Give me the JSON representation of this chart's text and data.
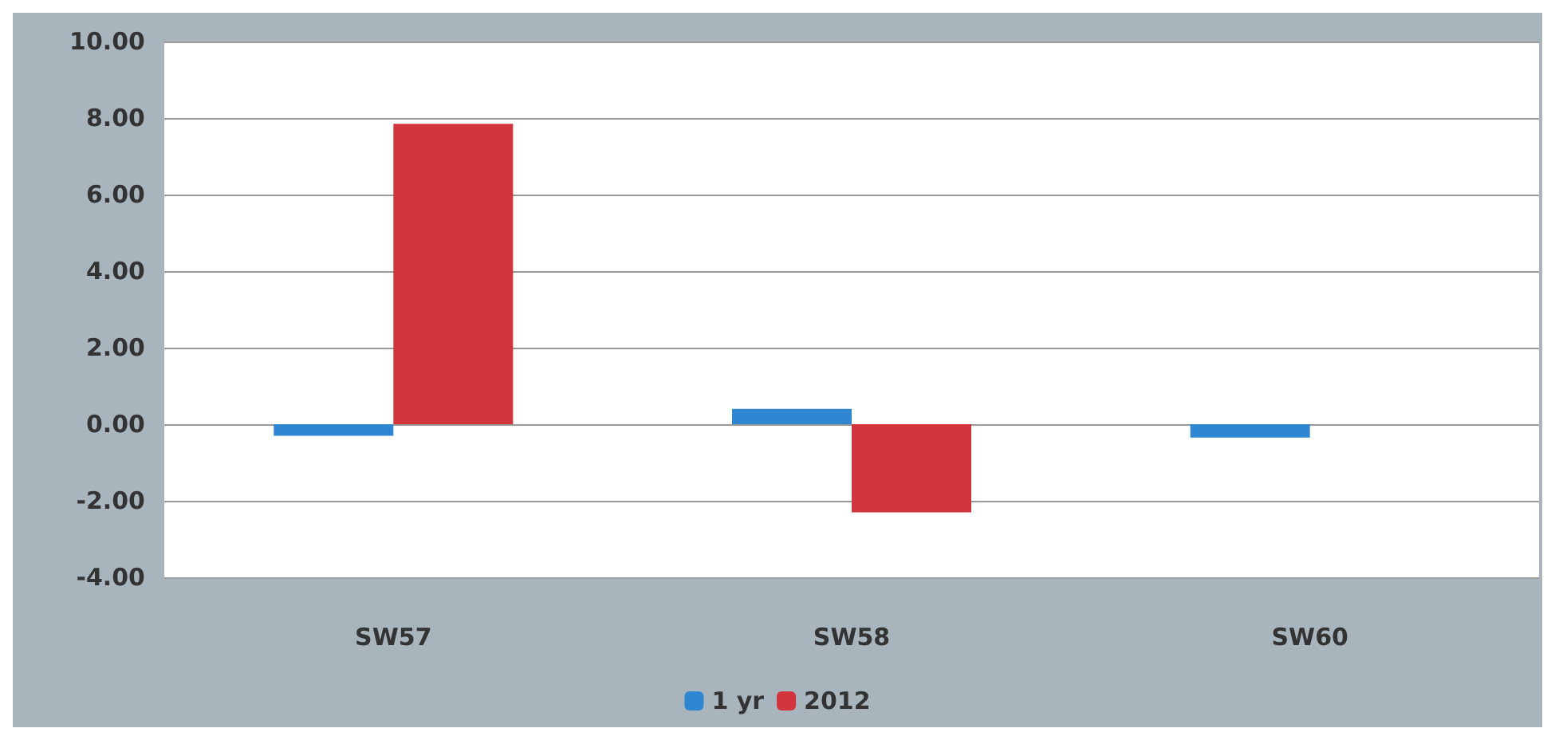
{
  "chart_data": {
    "type": "bar",
    "categories": [
      "SW57",
      "SW58",
      "SW60"
    ],
    "series": [
      {
        "name": "1 yr",
        "color": "#2f86d1",
        "values": [
          -0.3,
          0.4,
          -0.35
        ]
      },
      {
        "name": "2012",
        "color": "#d1343d",
        "values": [
          7.85,
          -2.3,
          null
        ]
      }
    ],
    "ylim": [
      -4,
      10
    ],
    "yticks": [
      {
        "value": -4,
        "label": "-4.00"
      },
      {
        "value": -2,
        "label": "-2.00"
      },
      {
        "value": 0,
        "label": "0.00"
      },
      {
        "value": 2,
        "label": "2.00"
      },
      {
        "value": 4,
        "label": "4.00"
      },
      {
        "value": 6,
        "label": "6.00"
      },
      {
        "value": 8,
        "label": "8.00"
      },
      {
        "value": 10,
        "label": "10.00"
      }
    ],
    "grid": "y",
    "legend": "bottom"
  }
}
